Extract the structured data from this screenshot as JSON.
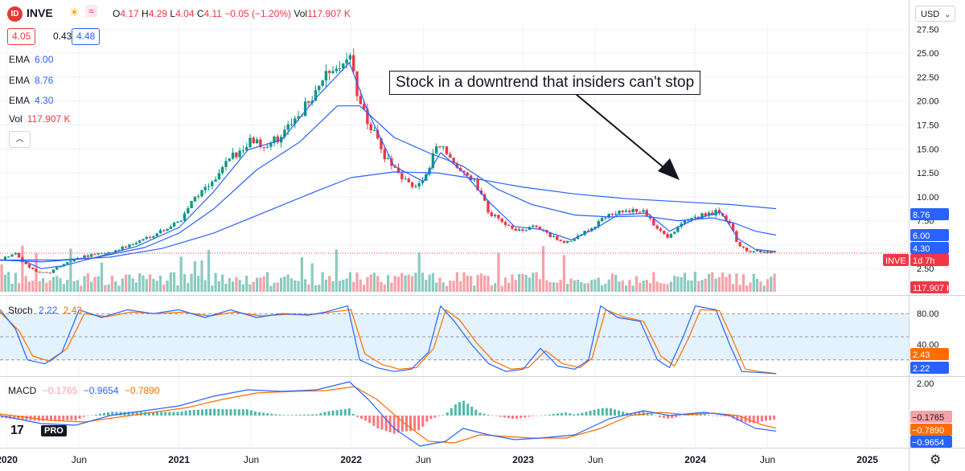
{
  "header": {
    "logo_text": "ID",
    "symbol": "INVE",
    "sun_icon": "☀",
    "wave_icon": "≈",
    "o_label": "O",
    "o": "4.17",
    "h_label": "H",
    "h": "4.29",
    "l_label": "L",
    "l": "4.04",
    "c_label": "C",
    "c": "4.11",
    "change": "−0.05 (−1.20%)",
    "vol_label": "Vol",
    "vol": "117.907 K"
  },
  "quote": {
    "bid": "4.05",
    "spread": "0.43",
    "ask": "4.48"
  },
  "legend": [
    {
      "name": "EMA",
      "value": "6.00",
      "color": "#2962ff"
    },
    {
      "name": "EMA",
      "value": "8.76",
      "color": "#2962ff"
    },
    {
      "name": "EMA",
      "value": "4.30",
      "color": "#2962ff"
    },
    {
      "name": "Vol",
      "value": "117.907 K",
      "color": "#f23645"
    }
  ],
  "collapse_icon": "chevron-up-icon",
  "collapse_glyph": "︿",
  "annotation": "Stock in a downtrend that insiders can't stop",
  "currency": "USD",
  "currency_chevron": "⌄",
  "gear_glyph": "⚙",
  "tv_logo": {
    "mark": "17",
    "pro": "PRO"
  },
  "colors": {
    "up": "#089981",
    "down": "#f23645",
    "ema": "#2962ff",
    "stoch_d": "#ff6d00",
    "band": "#e3f2fd"
  },
  "chart_data": [
    {
      "type": "candlestick",
      "symbol": "INVE",
      "x_ticks": [
        {
          "x": 2020.0,
          "label": "2020"
        },
        {
          "x": 2020.42,
          "label": "Jun"
        },
        {
          "x": 2021.0,
          "label": "2021"
        },
        {
          "x": 2021.42,
          "label": "Jun"
        },
        {
          "x": 2022.0,
          "label": "2022"
        },
        {
          "x": 2022.42,
          "label": "Jun"
        },
        {
          "x": 2023.0,
          "label": "2023"
        },
        {
          "x": 2023.42,
          "label": "Jun"
        },
        {
          "x": 2024.0,
          "label": "2024"
        },
        {
          "x": 2024.42,
          "label": "Jun"
        },
        {
          "x": 2025.0,
          "label": "2025"
        }
      ],
      "xlim": [
        2019.96,
        2025.24
      ],
      "ylim": [
        0,
        28.2
      ],
      "y_ticks": [
        "27.50",
        "25.00",
        "22.50",
        "20.00",
        "17.50",
        "15.00",
        "12.50",
        "10.00",
        "7.50",
        "2.50"
      ],
      "price_path": [
        [
          2019.96,
          3.4
        ],
        [
          2020.05,
          4.2
        ],
        [
          2020.1,
          3.0
        ],
        [
          2020.17,
          2.2
        ],
        [
          2020.25,
          2.1
        ],
        [
          2020.33,
          3.0
        ],
        [
          2020.45,
          3.8
        ],
        [
          2020.6,
          4.2
        ],
        [
          2020.75,
          5.2
        ],
        [
          2020.9,
          6.5
        ],
        [
          2021.0,
          7.4
        ],
        [
          2021.1,
          10.2
        ],
        [
          2021.2,
          11.5
        ],
        [
          2021.3,
          14.0
        ],
        [
          2021.4,
          15.8
        ],
        [
          2021.5,
          15.4
        ],
        [
          2021.6,
          16.5
        ],
        [
          2021.7,
          18.2
        ],
        [
          2021.8,
          21.5
        ],
        [
          2021.9,
          23.2
        ],
        [
          2021.99,
          25.2
        ],
        [
          2022.05,
          19.5
        ],
        [
          2022.12,
          17.0
        ],
        [
          2022.2,
          14.0
        ],
        [
          2022.28,
          12.0
        ],
        [
          2022.35,
          11.2
        ],
        [
          2022.42,
          11.5
        ],
        [
          2022.5,
          15.5
        ],
        [
          2022.58,
          14.0
        ],
        [
          2022.65,
          12.3
        ],
        [
          2022.72,
          11.5
        ],
        [
          2022.8,
          8.5
        ],
        [
          2022.9,
          6.8
        ],
        [
          2023.0,
          6.6
        ],
        [
          2023.08,
          7.0
        ],
        [
          2023.16,
          5.8
        ],
        [
          2023.25,
          5.2
        ],
        [
          2023.33,
          5.9
        ],
        [
          2023.42,
          7.1
        ],
        [
          2023.5,
          8.4
        ],
        [
          2023.6,
          8.5
        ],
        [
          2023.7,
          8.4
        ],
        [
          2023.78,
          6.8
        ],
        [
          2023.84,
          5.9
        ],
        [
          2023.92,
          7.2
        ],
        [
          2024.0,
          8.0
        ],
        [
          2024.08,
          8.1
        ],
        [
          2024.15,
          8.6
        ],
        [
          2024.2,
          7.0
        ],
        [
          2024.25,
          5.0
        ],
        [
          2024.3,
          4.4
        ],
        [
          2024.4,
          4.2
        ],
        [
          2024.47,
          4.11
        ]
      ],
      "ema_fast": [
        [
          2019.96,
          3.4
        ],
        [
          2020.1,
          3.3
        ],
        [
          2020.2,
          2.5
        ],
        [
          2020.33,
          2.8
        ],
        [
          2020.5,
          3.6
        ],
        [
          2020.75,
          4.8
        ],
        [
          2021.0,
          6.8
        ],
        [
          2021.2,
          10.5
        ],
        [
          2021.4,
          14.9
        ],
        [
          2021.6,
          16.0
        ],
        [
          2021.8,
          20.4
        ],
        [
          2021.99,
          24.0
        ],
        [
          2022.1,
          18.8
        ],
        [
          2022.25,
          13.2
        ],
        [
          2022.42,
          11.6
        ],
        [
          2022.52,
          14.6
        ],
        [
          2022.65,
          12.6
        ],
        [
          2022.8,
          9.5
        ],
        [
          2022.95,
          6.9
        ],
        [
          2023.1,
          6.6
        ],
        [
          2023.28,
          5.5
        ],
        [
          2023.42,
          6.7
        ],
        [
          2023.55,
          8.1
        ],
        [
          2023.72,
          8.3
        ],
        [
          2023.85,
          6.4
        ],
        [
          2024.0,
          7.7
        ],
        [
          2024.15,
          8.4
        ],
        [
          2024.25,
          5.6
        ],
        [
          2024.35,
          4.5
        ],
        [
          2024.47,
          4.3
        ]
      ],
      "ema_mid": [
        [
          2019.96,
          3.4
        ],
        [
          2020.2,
          3.2
        ],
        [
          2020.5,
          3.6
        ],
        [
          2020.8,
          4.7
        ],
        [
          2021.0,
          6.2
        ],
        [
          2021.2,
          8.7
        ],
        [
          2021.45,
          12.8
        ],
        [
          2021.7,
          15.7
        ],
        [
          2021.92,
          19.5
        ],
        [
          2022.05,
          19.5
        ],
        [
          2022.25,
          16.2
        ],
        [
          2022.45,
          14.6
        ],
        [
          2022.65,
          13.2
        ],
        [
          2022.85,
          10.8
        ],
        [
          2023.05,
          9.2
        ],
        [
          2023.3,
          8.1
        ],
        [
          2023.5,
          7.9
        ],
        [
          2023.7,
          8.0
        ],
        [
          2023.9,
          7.5
        ],
        [
          2024.1,
          7.8
        ],
        [
          2024.22,
          7.3
        ],
        [
          2024.35,
          6.4
        ],
        [
          2024.47,
          6.0
        ]
      ],
      "ema_slow": [
        [
          2019.96,
          3.4
        ],
        [
          2020.3,
          3.4
        ],
        [
          2020.6,
          3.7
        ],
        [
          2020.9,
          4.6
        ],
        [
          2021.2,
          6.2
        ],
        [
          2021.5,
          8.4
        ],
        [
          2021.8,
          10.6
        ],
        [
          2022.0,
          12.0
        ],
        [
          2022.25,
          12.6
        ],
        [
          2022.5,
          12.5
        ],
        [
          2022.75,
          11.8
        ],
        [
          2023.0,
          11.0
        ],
        [
          2023.3,
          10.3
        ],
        [
          2023.6,
          9.8
        ],
        [
          2023.9,
          9.5
        ],
        [
          2024.2,
          9.2
        ],
        [
          2024.47,
          8.76
        ]
      ],
      "right_labels": [
        {
          "text": "8.76",
          "y": 8.76,
          "color": "#2962ff"
        },
        {
          "text": "6.00",
          "y": 6.0,
          "color": "#2962ff"
        },
        {
          "text": "4.30",
          "y": 4.3,
          "color": "#2962ff"
        },
        {
          "text": "INVE",
          "y": 4.11,
          "color": "#f23645"
        },
        {
          "text": "1d 7h",
          "y": 4.11,
          "color": "#f23645"
        },
        {
          "text": "117.907 K",
          "y": 0.9,
          "color": "#f23645"
        }
      ]
    },
    {
      "type": "line",
      "title": "Stoch",
      "series": [
        {
          "name": "%K",
          "value_label": "2.22",
          "color": "#2962ff"
        },
        {
          "name": "%D",
          "value_label": "2.43",
          "color": "#ff6d00"
        }
      ],
      "ylim": [
        0,
        100
      ],
      "band": [
        20,
        80
      ],
      "y_ticks": [
        "80.00",
        "40.00"
      ],
      "k_path": [
        [
          2019.96,
          85
        ],
        [
          2020.05,
          60
        ],
        [
          2020.12,
          20
        ],
        [
          2020.22,
          15
        ],
        [
          2020.32,
          30
        ],
        [
          2020.42,
          85
        ],
        [
          2020.55,
          75
        ],
        [
          2020.7,
          85
        ],
        [
          2020.85,
          80
        ],
        [
          2021.0,
          85
        ],
        [
          2021.15,
          75
        ],
        [
          2021.3,
          85
        ],
        [
          2021.45,
          75
        ],
        [
          2021.6,
          80
        ],
        [
          2021.75,
          78
        ],
        [
          2021.85,
          82
        ],
        [
          2021.98,
          90
        ],
        [
          2022.05,
          20
        ],
        [
          2022.15,
          10
        ],
        [
          2022.25,
          5
        ],
        [
          2022.35,
          8
        ],
        [
          2022.45,
          30
        ],
        [
          2022.52,
          90
        ],
        [
          2022.6,
          70
        ],
        [
          2022.7,
          40
        ],
        [
          2022.8,
          15
        ],
        [
          2022.9,
          5
        ],
        [
          2023.0,
          8
        ],
        [
          2023.1,
          35
        ],
        [
          2023.2,
          12
        ],
        [
          2023.3,
          8
        ],
        [
          2023.38,
          20
        ],
        [
          2023.45,
          90
        ],
        [
          2023.55,
          75
        ],
        [
          2023.68,
          70
        ],
        [
          2023.78,
          20
        ],
        [
          2023.85,
          10
        ],
        [
          2023.93,
          50
        ],
        [
          2024.0,
          90
        ],
        [
          2024.12,
          85
        ],
        [
          2024.2,
          40
        ],
        [
          2024.27,
          5
        ],
        [
          2024.35,
          4
        ],
        [
          2024.47,
          2.22
        ]
      ],
      "d_path": [
        [
          2019.96,
          82
        ],
        [
          2020.07,
          58
        ],
        [
          2020.15,
          25
        ],
        [
          2020.25,
          18
        ],
        [
          2020.35,
          35
        ],
        [
          2020.45,
          80
        ],
        [
          2020.58,
          76
        ],
        [
          2020.72,
          82
        ],
        [
          2020.88,
          80
        ],
        [
          2021.02,
          82
        ],
        [
          2021.18,
          77
        ],
        [
          2021.32,
          82
        ],
        [
          2021.48,
          77
        ],
        [
          2021.62,
          79
        ],
        [
          2021.78,
          79
        ],
        [
          2021.88,
          82
        ],
        [
          2022.0,
          85
        ],
        [
          2022.08,
          28
        ],
        [
          2022.18,
          14
        ],
        [
          2022.28,
          8
        ],
        [
          2022.38,
          10
        ],
        [
          2022.48,
          35
        ],
        [
          2022.55,
          85
        ],
        [
          2022.63,
          72
        ],
        [
          2022.73,
          42
        ],
        [
          2022.83,
          18
        ],
        [
          2022.93,
          8
        ],
        [
          2023.03,
          10
        ],
        [
          2023.13,
          32
        ],
        [
          2023.23,
          15
        ],
        [
          2023.33,
          10
        ],
        [
          2023.4,
          22
        ],
        [
          2023.48,
          85
        ],
        [
          2023.58,
          76
        ],
        [
          2023.7,
          70
        ],
        [
          2023.8,
          25
        ],
        [
          2023.88,
          12
        ],
        [
          2023.96,
          48
        ],
        [
          2024.03,
          85
        ],
        [
          2024.14,
          84
        ],
        [
          2024.22,
          45
        ],
        [
          2024.29,
          8
        ],
        [
          2024.37,
          5
        ],
        [
          2024.47,
          2.43
        ]
      ],
      "right_labels": [
        {
          "text": "2.43",
          "y": 25,
          "color": "#ff6d00"
        },
        {
          "text": "2.22",
          "y": 5,
          "color": "#2962ff"
        }
      ]
    },
    {
      "type": "bar",
      "title": "MACD",
      "series": [
        {
          "name": "Histogram",
          "value_label": "−0.1765",
          "color": "#f7a1a8"
        },
        {
          "name": "MACD",
          "value_label": "−0.9654",
          "color": "#2962ff"
        },
        {
          "name": "Signal",
          "value_label": "−0.7890",
          "color": "#ff6d00"
        }
      ],
      "ylim": [
        -2.0,
        2.4
      ],
      "y_ticks": [
        "2.00"
      ],
      "macd_path": [
        [
          2019.96,
          0.0
        ],
        [
          2020.2,
          -0.5
        ],
        [
          2020.4,
          -0.6
        ],
        [
          2020.6,
          0.0
        ],
        [
          2020.8,
          0.3
        ],
        [
          2021.0,
          0.6
        ],
        [
          2021.2,
          1.2
        ],
        [
          2021.4,
          1.6
        ],
        [
          2021.6,
          1.5
        ],
        [
          2021.8,
          1.6
        ],
        [
          2021.99,
          2.1
        ],
        [
          2022.1,
          1.0
        ],
        [
          2022.25,
          -0.8
        ],
        [
          2022.4,
          -1.9
        ],
        [
          2022.55,
          -1.6
        ],
        [
          2022.65,
          -0.8
        ],
        [
          2022.8,
          -1.2
        ],
        [
          2022.95,
          -1.5
        ],
        [
          2023.1,
          -1.4
        ],
        [
          2023.3,
          -1.2
        ],
        [
          2023.5,
          -0.2
        ],
        [
          2023.7,
          0.3
        ],
        [
          2023.85,
          0.0
        ],
        [
          2024.05,
          0.2
        ],
        [
          2024.2,
          0.0
        ],
        [
          2024.35,
          -0.8
        ],
        [
          2024.47,
          -0.9654
        ]
      ],
      "signal_path": [
        [
          2019.96,
          0.1
        ],
        [
          2020.25,
          -0.3
        ],
        [
          2020.45,
          -0.4
        ],
        [
          2020.65,
          -0.1
        ],
        [
          2020.85,
          0.2
        ],
        [
          2021.05,
          0.5
        ],
        [
          2021.25,
          1.0
        ],
        [
          2021.45,
          1.4
        ],
        [
          2021.65,
          1.5
        ],
        [
          2021.85,
          1.55
        ],
        [
          2022.02,
          1.8
        ],
        [
          2022.15,
          1.0
        ],
        [
          2022.3,
          -0.4
        ],
        [
          2022.45,
          -1.6
        ],
        [
          2022.6,
          -1.7
        ],
        [
          2022.75,
          -1.2
        ],
        [
          2022.9,
          -1.3
        ],
        [
          2023.05,
          -1.4
        ],
        [
          2023.25,
          -1.4
        ],
        [
          2023.45,
          -0.8
        ],
        [
          2023.62,
          0.0
        ],
        [
          2023.8,
          0.2
        ],
        [
          2023.95,
          0.05
        ],
        [
          2024.1,
          0.15
        ],
        [
          2024.25,
          0.0
        ],
        [
          2024.38,
          -0.55
        ],
        [
          2024.47,
          -0.789
        ]
      ],
      "right_labels": [
        {
          "text": "−0.1765",
          "y": -0.1765,
          "color": "#f7a1a8"
        },
        {
          "text": "−0.7890",
          "y": -0.789,
          "color": "#ff6d00"
        },
        {
          "text": "−0.9654",
          "y": -0.9654,
          "color": "#2962ff"
        }
      ]
    }
  ]
}
